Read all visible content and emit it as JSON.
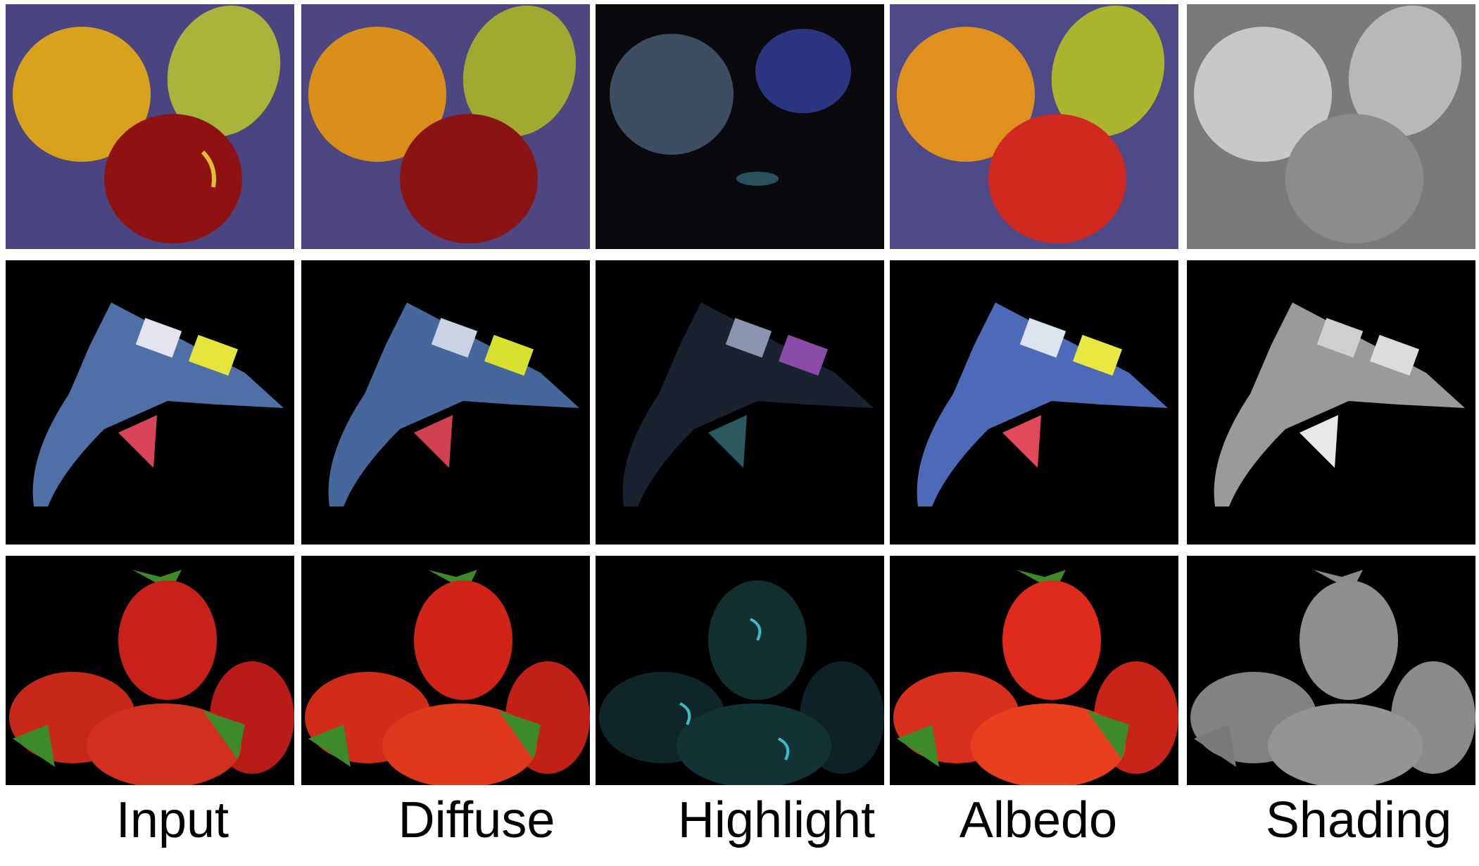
{
  "columns": [
    {
      "id": "input",
      "label": "Input"
    },
    {
      "id": "diffuse",
      "label": "Diffuse"
    },
    {
      "id": "highlight",
      "label": "Highlight"
    },
    {
      "id": "albedo",
      "label": "Albedo"
    },
    {
      "id": "shading",
      "label": "Shading"
    }
  ],
  "rows": [
    {
      "id": "fruit",
      "subject": "orange-pear-apple"
    },
    {
      "id": "glue-gun",
      "subject": "glue-gun"
    },
    {
      "id": "strawberries",
      "subject": "strawberries"
    }
  ],
  "colors": {
    "background": "#ffffff",
    "panel_black": "#000000",
    "cloth_purple": "#4a4580",
    "orange": "#d9a21c",
    "pear": "#a8b43a",
    "apple": "#8e1212",
    "gun_blue": "#4f70a6",
    "trigger": "#d8455a",
    "sticker_yellow": "#e4e43a",
    "strawberry": "#c8201a",
    "leaf": "#3c8a2a"
  }
}
